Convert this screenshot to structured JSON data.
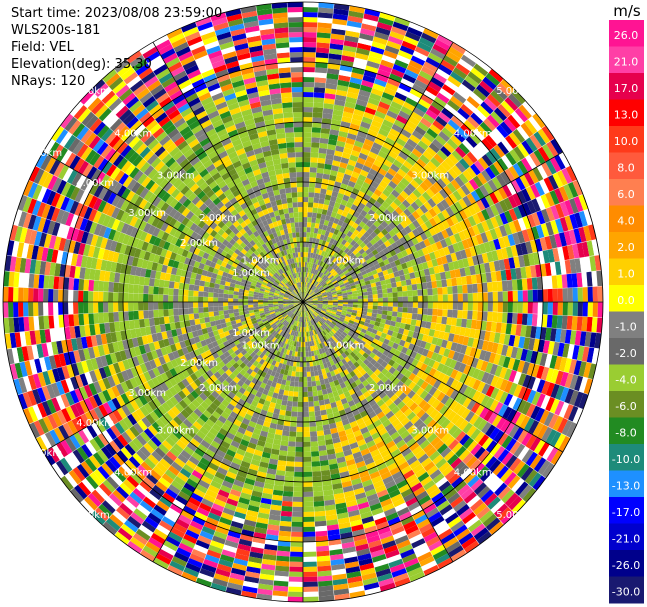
{
  "header": {
    "start_time": "Start time: 2023/08/08 23:59:00",
    "instrument": "WLS200s-181",
    "field": "Field: VEL",
    "elevation": "Elevation(deg): 35.30",
    "nrays": "NRays: 120"
  },
  "colorbar": {
    "unit": "m/s",
    "ticks": [
      "26.0",
      "21.0",
      "17.0",
      "13.0",
      "10.0",
      "8.0",
      "6.0",
      "4.0",
      "2.0",
      "1.0",
      "0.0",
      "-1.0",
      "-2.0",
      "-4.0",
      "-6.0",
      "-8.0",
      "-10.0",
      "-13.0",
      "-17.0",
      "-21.0",
      "-26.0",
      "-30.0"
    ],
    "colors": [
      "#ff1493",
      "#ff3fa6",
      "#e6004d",
      "#ff0000",
      "#ff3a1a",
      "#ff5a3c",
      "#ff7f50",
      "#ff8c00",
      "#ffa500",
      "#ffd000",
      "#ffff00",
      "#808080",
      "#696969",
      "#9acd32",
      "#6b8e23",
      "#228b22",
      "#1e8b7a",
      "#1e90ff",
      "#0000ff",
      "#0000cd",
      "#00008b",
      "#191970"
    ]
  },
  "chart_data": {
    "type": "heatmap",
    "subtype": "PPI radial velocity scan",
    "field": "VEL",
    "units": "m/s",
    "elevation_deg": 35.3,
    "nrays": 120,
    "range_ring_labels": [
      "1.00km",
      "2.00km",
      "3.00km",
      "4.00km",
      "5.00km"
    ],
    "value_range": [
      -30.0,
      26.0
    ],
    "pattern": "weak near-zero velocities (grey/green/yellow) within ~4 km; noisy multicolor returns beyond ~4 km"
  }
}
